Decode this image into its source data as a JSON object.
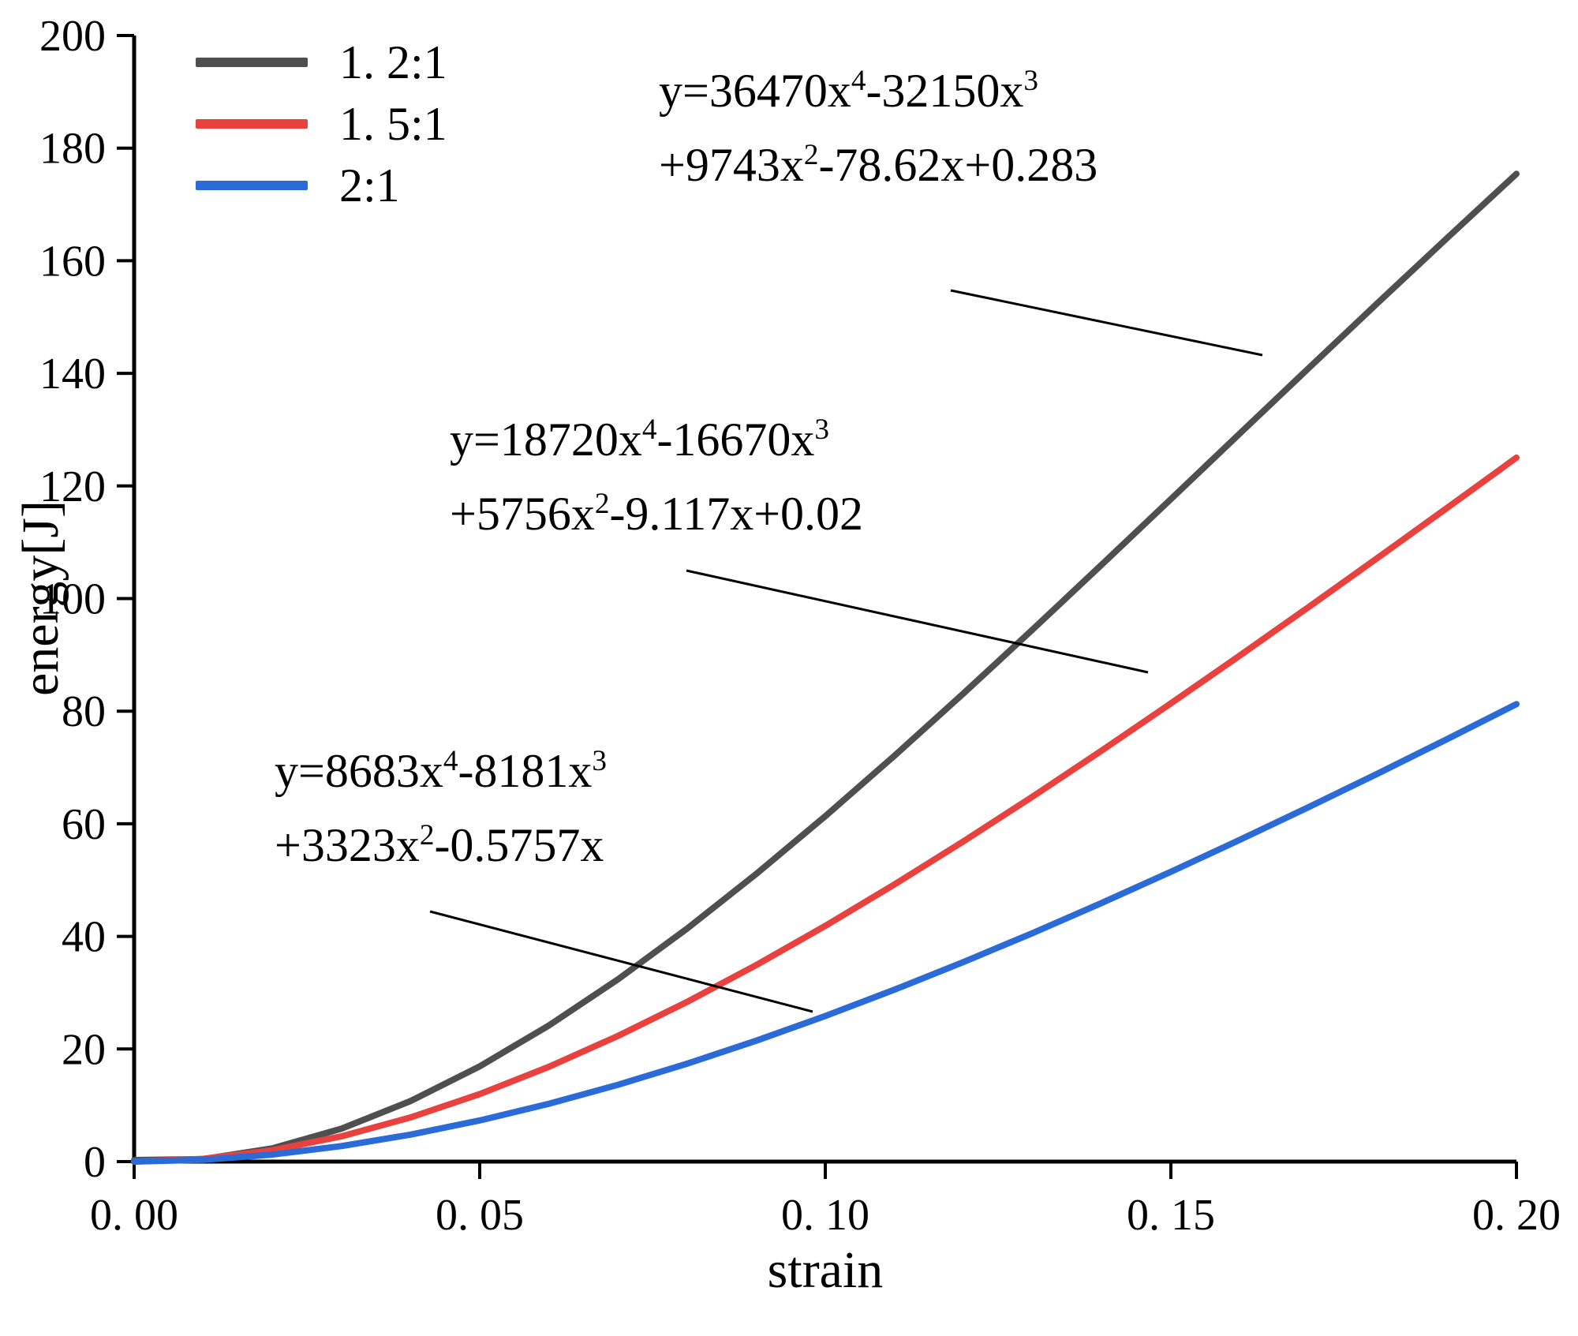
{
  "figure": {
    "background": "#ffffff"
  },
  "axes": {
    "xlabel": "strain",
    "ylabel": "energy[J]"
  },
  "legend": {
    "items": [
      {
        "label": "1. 2:1",
        "color": "#4f4f4f"
      },
      {
        "label": "1. 5:1",
        "color": "#e8413e"
      },
      {
        "label": "2:1",
        "color": "#2a6bd8"
      }
    ]
  },
  "annotations": [
    {
      "line1": "y=36470x⁴-32150x³",
      "line2": "+9743x²-78.62x+0.283"
    },
    {
      "line1": "y=18720x⁴-16670x³",
      "line2": "+5756x²-9.117x+0.02"
    },
    {
      "line1": "y=8683x⁴-8181x³",
      "line2": "+3323x²-0.5757x"
    }
  ],
  "chart_data": {
    "type": "line",
    "title": "",
    "xlabel": "strain",
    "ylabel": "energy[J]",
    "xlim": [
      0,
      0.2
    ],
    "ylim": [
      0,
      200
    ],
    "grid": false,
    "legend_position": "top-left",
    "x_ticks": {
      "values": [
        0,
        0.05,
        0.1,
        0.15,
        0.2
      ],
      "labels": [
        "0. 00",
        "0. 05",
        "0. 10",
        "0. 15",
        "0. 20"
      ]
    },
    "y_ticks": {
      "values": [
        0,
        20,
        40,
        60,
        80,
        100,
        120,
        140,
        160,
        180,
        200
      ],
      "labels": [
        "0",
        "20",
        "40",
        "60",
        "80",
        "100",
        "120",
        "140",
        "160",
        "180",
        "200"
      ]
    },
    "x": [
      0,
      0.01,
      0.02,
      0.03,
      0.04,
      0.05,
      0.06,
      0.07,
      0.08,
      0.09,
      0.1,
      0.11,
      0.12,
      0.13,
      0.14,
      0.15,
      0.16,
      0.17,
      0.18,
      0.19,
      0.2
    ],
    "series": [
      {
        "name": "1. 2:1",
        "color": "#4f4f4f",
        "equation": "y=36470x⁴-32150x³+9743x²-78.62x+0.283",
        "values": [
          0.28,
          0.44,
          2.36,
          5.85,
          10.76,
          16.92,
          24.17,
          32.37,
          41.38,
          51.08,
          61.35,
          72.07,
          83.16,
          94.5,
          106.03,
          117.66,
          129.34,
          141.0,
          152.59,
          164.07,
          175.43
        ]
      },
      {
        "name": "1. 5:1",
        "color": "#e8413e",
        "equation": "y=18720x⁴-16670x³+5756x²-9.117x+0.02",
        "values": [
          0.02,
          0.49,
          2.01,
          4.49,
          7.85,
          11.99,
          16.84,
          22.32,
          28.36,
          34.9,
          41.87,
          49.22,
          56.89,
          64.83,
          73.01,
          81.38,
          89.9,
          98.55,
          107.3,
          116.13,
          125.03
        ]
      },
      {
        "name": "2:1",
        "color": "#2a6bd8",
        "equation": "y=8683x⁴-8181x³+3323x²-0.5757x",
        "values": [
          0,
          0.32,
          1.25,
          2.76,
          4.79,
          7.31,
          10.27,
          13.64,
          17.39,
          21.47,
          25.86,
          30.53,
          35.45,
          40.59,
          45.94,
          51.47,
          57.16,
          63.0,
          68.96,
          75.05,
          81.25
        ]
      }
    ]
  }
}
